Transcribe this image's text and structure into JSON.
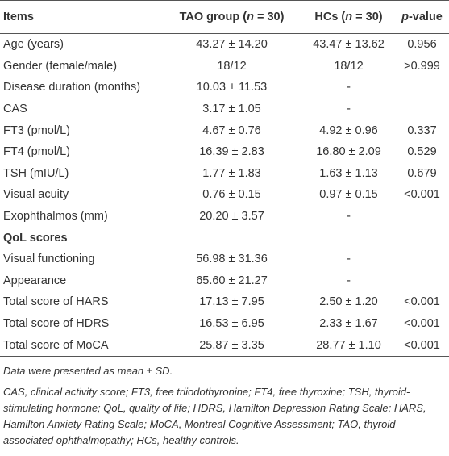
{
  "table": {
    "header": [
      "Items",
      [
        "TAO group (",
        "n",
        " = 30)"
      ],
      [
        "HCs (",
        "n",
        " = 30)"
      ],
      [
        "p",
        "-value"
      ]
    ],
    "groups": [
      {
        "rows": [
          [
            "Age (years)",
            "43.27 ± 14.20",
            "43.47 ± 13.62",
            "0.956"
          ],
          [
            "Gender (female/male)",
            "18/12",
            "18/12",
            ">0.999"
          ],
          [
            "Disease duration (months)",
            "10.03 ± 11.53",
            "-",
            null
          ],
          [
            "CAS",
            "3.17 ± 1.05",
            "-",
            null
          ],
          [
            "FT3 (pmol/L)",
            "4.67 ± 0.76",
            "4.92 ± 0.96",
            "0.337"
          ],
          [
            "FT4 (pmol/L)",
            "16.39 ± 2.83",
            "16.80 ± 2.09",
            "0.529"
          ],
          [
            "TSH (mIU/L)",
            "1.77 ± 1.83",
            "1.63 ± 1.13",
            "0.679"
          ],
          [
            "Visual acuity",
            "0.76 ± 0.15",
            "0.97 ± 0.15",
            "<0.001"
          ],
          [
            "Exophthalmos (mm)",
            "20.20 ± 3.57",
            "-",
            null
          ]
        ]
      },
      {
        "title": "QoL scores",
        "rows": [
          [
            "Visual functioning",
            "56.98 ± 31.36",
            "-",
            null
          ],
          [
            "Appearance",
            "65.60 ± 21.27",
            "-",
            null
          ],
          [
            "Total score of HARS",
            "17.13 ± 7.95",
            "2.50 ± 1.20",
            "<0.001"
          ],
          [
            "Total score of HDRS",
            "16.53 ± 6.95",
            "2.33 ± 1.67",
            "<0.001"
          ],
          [
            "Total score of MoCA",
            "25.87 ± 3.35",
            "28.77 ± 1.10",
            "<0.001"
          ]
        ]
      }
    ]
  },
  "notes": [
    "Data were presented as mean ± SD.",
    "CAS, clinical activity score; FT3, free triiodothyronine; FT4, free thyroxine; TSH, thyroid-stimulating hormone; QoL, quality of life; HDRS, Hamilton Depression Rating Scale; HARS, Hamilton Anxiety Rating Scale; MoCA, Montreal Cognitive Assessment; TAO, thyroid-associated ophthalmopathy; HCs, healthy controls."
  ]
}
